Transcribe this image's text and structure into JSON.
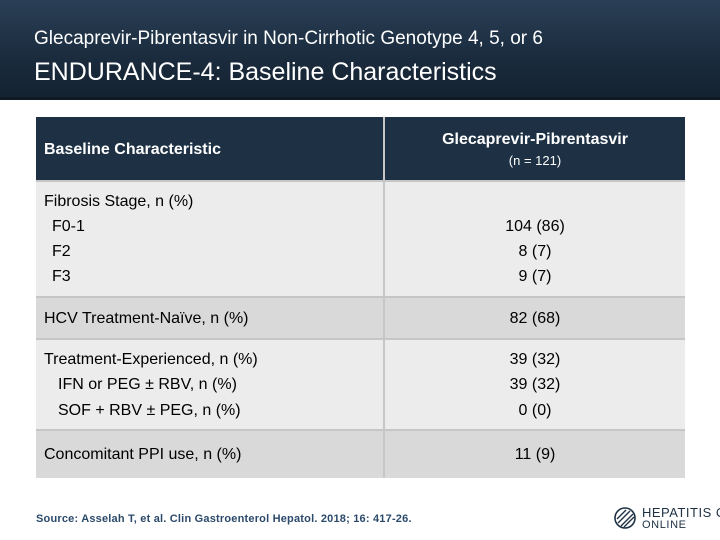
{
  "header": {
    "subtitle": "Glecaprevir-Pibrentasvir in Non-Cirrhotic Genotype 4, 5, or 6",
    "title": "ENDURANCE-4: Baseline Characteristics"
  },
  "table": {
    "col_label": "Baseline Characteristic",
    "col_drug": "Glecaprevir-Pibrentasvir",
    "col_n": "(n = 121)",
    "rows": [
      {
        "lines": [
          "Fibrosis Stage, n (%)",
          "F0-1",
          "F2",
          "F3"
        ],
        "values": [
          "",
          "104 (86)",
          "8 (7)",
          "9 (7)"
        ]
      },
      {
        "lines": [
          "HCV Treatment-Naïve, n (%)"
        ],
        "values": [
          "82 (68)"
        ]
      },
      {
        "lines": [
          "Treatment-Experienced, n (%)",
          "IFN or PEG ± RBV, n (%)",
          "SOF + RBV ± PEG, n (%)"
        ],
        "values": [
          "39 (32)",
          "39 (32)",
          "0 (0)"
        ]
      },
      {
        "lines": [
          "Concomitant PPI use, n (%)"
        ],
        "values": [
          "11 (9)"
        ]
      }
    ]
  },
  "footer": {
    "source": "Source: Asselah T, et al.  Clin Gastroenterol Hepatol. 2018; 16: 417-26.",
    "logo_line1": "HEPATITIS C",
    "logo_line2": "ONLINE"
  }
}
